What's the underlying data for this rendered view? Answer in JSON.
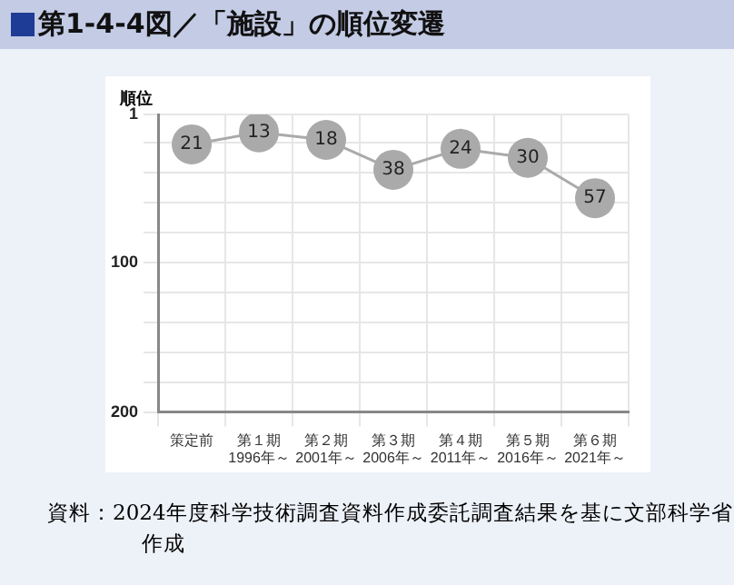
{
  "chart_data": {
    "type": "line",
    "title": "第1-4-4図／「施設」の順位変遷",
    "ylabel": "順位",
    "categories": [
      "策定前",
      "第１期\n1996年～",
      "第２期\n2001年～",
      "第３期\n2006年～",
      "第４期\n2011年～",
      "第５期\n2016年～",
      "第６期\n2021年～"
    ],
    "series": [
      {
        "color": "#aaaaaa",
        "values": [
          21,
          13,
          18,
          38,
          24,
          30,
          57
        ]
      }
    ],
    "ylim": [
      200,
      1
    ],
    "yticks": [
      1,
      {
        "value": 20,
        "label": null
      },
      {
        "value": 40,
        "label": null
      },
      {
        "value": 60,
        "label": null
      },
      {
        "value": 80,
        "label": null
      },
      100,
      {
        "value": 120,
        "label": null
      },
      {
        "value": 140,
        "label": null
      },
      {
        "value": 160,
        "label": null
      },
      {
        "value": 180,
        "label": null
      },
      200
    ],
    "grid": true,
    "marker": "circle",
    "data_labels": true,
    "legend": false,
    "annotations": [
      "資料：2024年度科学技術調査資料作成委託調査結果を基に文部科学省作成"
    ]
  }
}
